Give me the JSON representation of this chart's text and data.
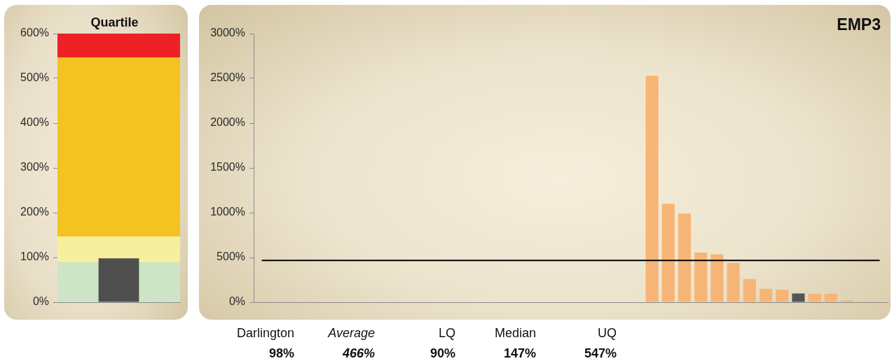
{
  "chart_data": [
    {
      "type": "bar",
      "title": "Quartile",
      "categories": [
        null
      ],
      "values": [
        98
      ],
      "color": "#4f4f4f",
      "ylim": [
        0,
        600
      ],
      "yticks": [
        {
          "value": 0,
          "label": "0%"
        },
        {
          "value": 100,
          "label": "100%"
        },
        {
          "value": 200,
          "label": "200%"
        },
        {
          "value": 300,
          "label": "300%"
        },
        {
          "value": 400,
          "label": "400%"
        },
        {
          "value": 500,
          "label": "500%"
        },
        {
          "value": 600,
          "label": "600%"
        }
      ],
      "bands": [
        {
          "axis": "y",
          "from": 0,
          "to": 90,
          "color": "#cde5c6"
        },
        {
          "axis": "y",
          "from": 90,
          "to": 147,
          "color": "#f6f09e"
        },
        {
          "axis": "y",
          "from": 147,
          "to": 547,
          "color": "#f4c322"
        },
        {
          "axis": "y",
          "from": 547,
          "to": 600,
          "color": "#ec2227"
        }
      ],
      "tick_labels": "y"
    },
    {
      "type": "bar",
      "title": "EMP3",
      "categories": [
        null,
        null,
        null,
        null,
        null,
        null,
        null,
        null,
        null,
        null,
        null,
        null,
        null,
        null,
        null,
        null,
        null,
        null,
        null,
        null,
        null,
        null,
        null,
        null,
        null,
        null,
        null,
        null,
        null,
        null,
        null,
        null,
        null,
        null,
        null,
        null,
        null,
        null,
        null
      ],
      "values": [
        null,
        null,
        null,
        null,
        null,
        null,
        null,
        null,
        null,
        null,
        null,
        null,
        null,
        null,
        null,
        null,
        null,
        null,
        null,
        null,
        null,
        null,
        null,
        null,
        2530,
        1100,
        990,
        555,
        535,
        440,
        260,
        150,
        140,
        98,
        95,
        95,
        20,
        null,
        null
      ],
      "colors": [
        "#f6b575",
        "#f6b575",
        "#f6b575",
        "#f6b575",
        "#f6b575",
        "#f6b575",
        "#f6b575",
        "#f6b575",
        "#f6b575",
        "#f6b575",
        "#f6b575",
        "#f6b575",
        "#f6b575",
        "#f6b575",
        "#f6b575",
        "#f6b575",
        "#f6b575",
        "#f6b575",
        "#f6b575",
        "#f6b575",
        "#f6b575",
        "#f6b575",
        "#f6b575",
        "#f6b575",
        "#f6b575",
        "#f6b575",
        "#f6b575",
        "#f6b575",
        "#f6b575",
        "#f6b575",
        "#f6b575",
        "#f6b575",
        "#f6b575",
        "#555555",
        "#f6b575",
        "#f6b575",
        "#f6b575",
        "#f6b575",
        "#f6b575"
      ],
      "ylim": [
        0,
        3000
      ],
      "yticks": [
        {
          "value": 0,
          "label": "0%"
        },
        {
          "value": 500,
          "label": "500%"
        },
        {
          "value": 1000,
          "label": "1000%"
        },
        {
          "value": 1500,
          "label": "1500%"
        },
        {
          "value": 2000,
          "label": "2000%"
        },
        {
          "value": 2500,
          "label": "2500%"
        },
        {
          "value": 3000,
          "label": "3000%"
        }
      ],
      "ref_lines": [
        {
          "axis": "y",
          "value": 466,
          "color": "#000000"
        }
      ],
      "annotations": [
        "Darlington",
        "98%",
        "Average",
        "466%",
        "LQ",
        "90%",
        "Median",
        "147%",
        "UQ",
        "547%"
      ],
      "tick_labels": "y"
    }
  ]
}
